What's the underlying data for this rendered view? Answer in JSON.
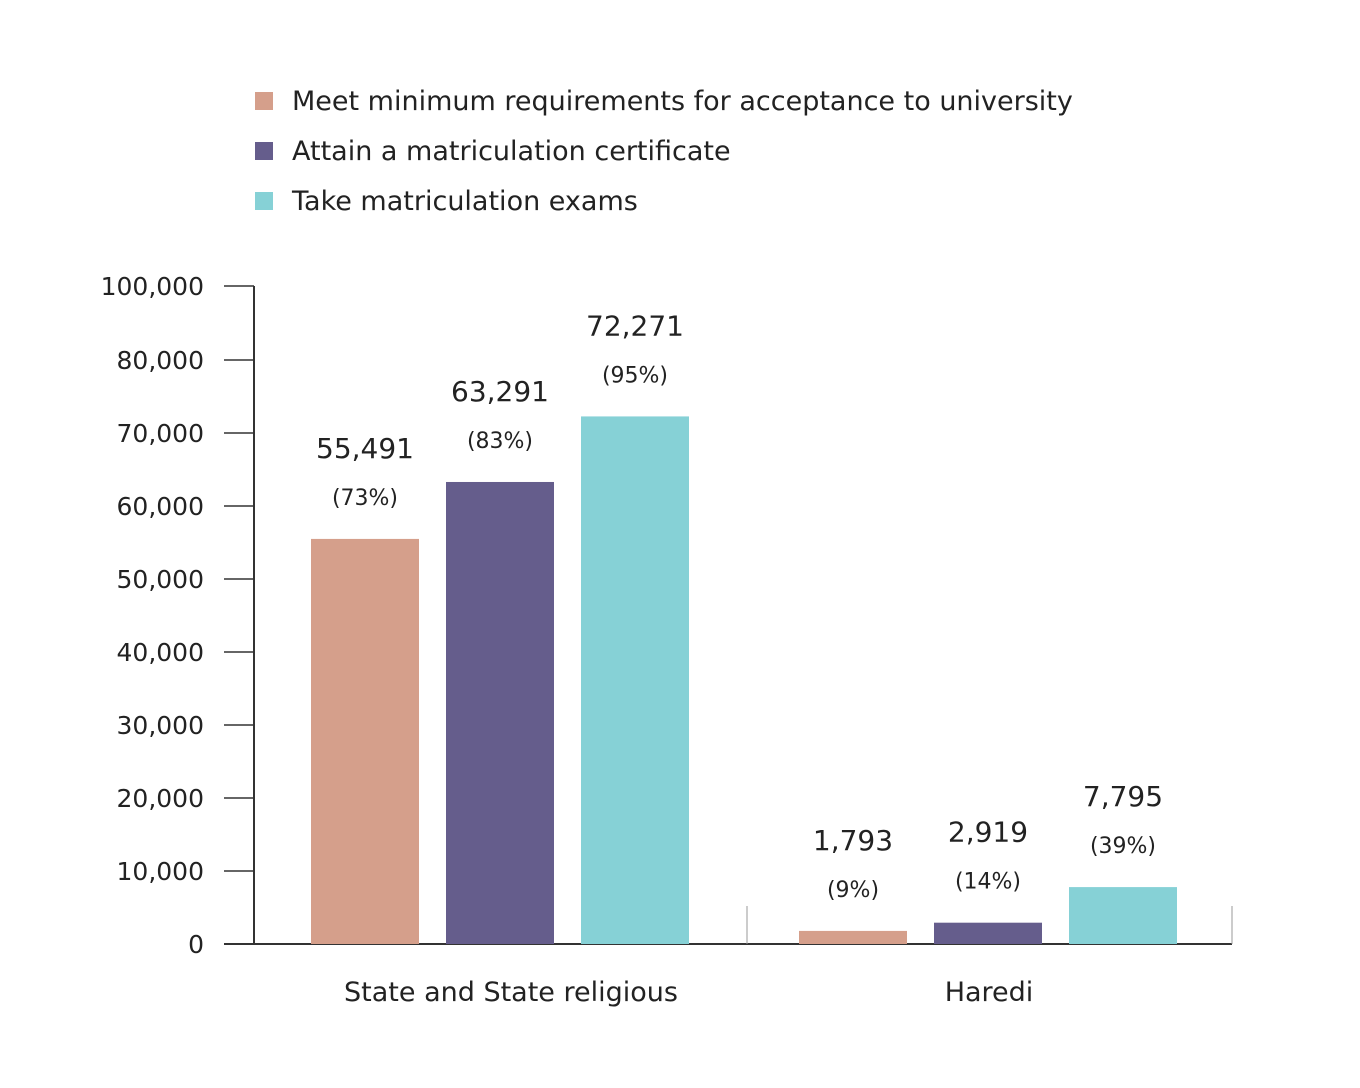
{
  "chart_data": {
    "type": "bar",
    "categories": [
      "State and State religious",
      "Haredi"
    ],
    "series": [
      {
        "name": "Meet minimum requirements for acceptance to university",
        "color": "#d59f8b",
        "values": [
          55491,
          1793
        ],
        "value_labels": [
          "55,491",
          "1,793"
        ],
        "percent_labels": [
          "(73%)",
          "(9%)"
        ]
      },
      {
        "name": "Attain a matriculation certificate",
        "color": "#655d8c",
        "values": [
          63291,
          2919
        ],
        "value_labels": [
          "63,291",
          "2,919"
        ],
        "percent_labels": [
          "(83%)",
          "(14%)"
        ]
      },
      {
        "name": "Take matriculation exams",
        "color": "#86d1d6",
        "values": [
          72271,
          7795
        ],
        "value_labels": [
          "72,271",
          "7,795"
        ],
        "percent_labels": [
          "(95%)",
          "(39%)"
        ]
      }
    ],
    "y_ticks": [
      0,
      10000,
      20000,
      30000,
      40000,
      50000,
      60000,
      70000,
      80000,
      100000
    ],
    "y_tick_labels": [
      "0",
      "10,000",
      "20,000",
      "30,000",
      "40,000",
      "50,000",
      "60,000",
      "70,000",
      "80,000",
      "100,000"
    ],
    "ylim": [
      0,
      100000
    ],
    "y_axis_break": true,
    "title": "",
    "xlabel": "",
    "ylabel": "",
    "legend_position": "top-left",
    "grid": false
  }
}
